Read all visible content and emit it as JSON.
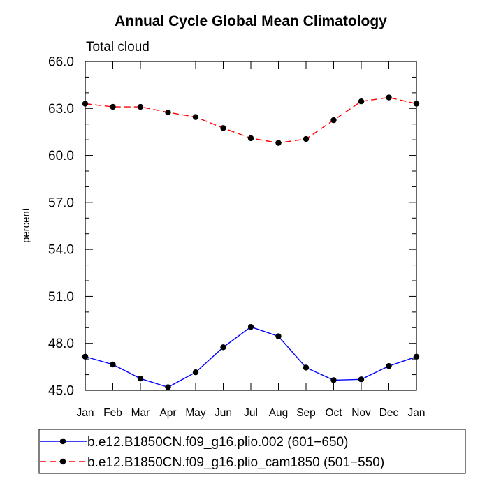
{
  "chart_data": {
    "type": "line",
    "title": "Annual Cycle Global Mean Climatology",
    "subtitle": "Total cloud",
    "ylabel": "percent",
    "xlabel": "",
    "ylim": [
      45.0,
      66.0
    ],
    "yticks": [
      "45.0",
      "48.0",
      "51.0",
      "54.0",
      "57.0",
      "60.0",
      "63.0",
      "66.0"
    ],
    "categories": [
      "Jan",
      "Feb",
      "Mar",
      "Apr",
      "May",
      "Jun",
      "Jul",
      "Aug",
      "Sep",
      "Oct",
      "Nov",
      "Dec",
      "Jan"
    ],
    "series": [
      {
        "name": "b.e12.B1850CN.f09_g16.plio.002 (601−650)",
        "color": "#0000ff",
        "style": "solid",
        "values": [
          47.15,
          46.65,
          45.75,
          45.2,
          46.15,
          47.75,
          49.05,
          48.45,
          46.45,
          45.65,
          45.7,
          46.55,
          47.15
        ]
      },
      {
        "name": "b.e12.B1850CN.f09_g16.plio_cam1850 (501−550)",
        "color": "#ff0000",
        "style": "dashed",
        "values": [
          63.3,
          63.1,
          63.1,
          62.75,
          62.45,
          61.75,
          61.1,
          60.8,
          61.05,
          62.25,
          63.45,
          63.7,
          63.3
        ]
      }
    ],
    "legend_position": "bottom"
  }
}
